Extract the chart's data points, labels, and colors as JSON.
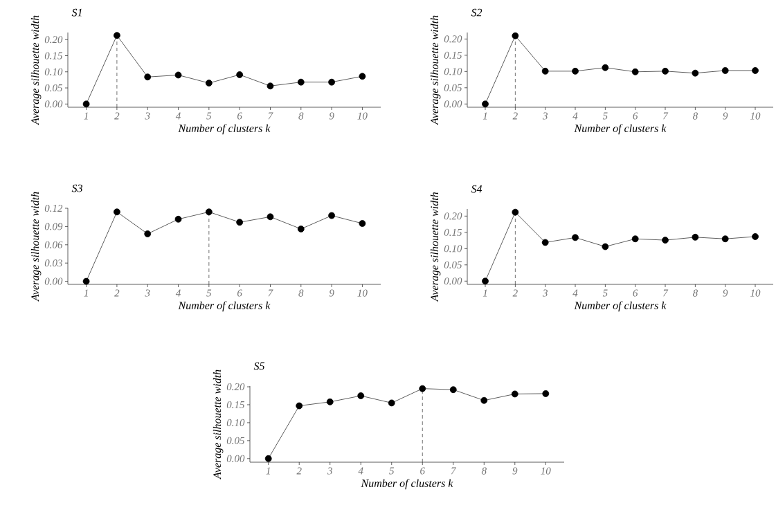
{
  "chart_data": [
    {
      "type": "line",
      "title": "S1",
      "xlabel": "Number of clusters k",
      "ylabel": "Average silhouette width",
      "marker": "circle",
      "x": [
        1,
        2,
        3,
        4,
        5,
        6,
        7,
        8,
        9,
        10
      ],
      "series": [
        {
          "color": "#000000",
          "values": [
            0,
            0.213,
            0.084,
            0.09,
            0.065,
            0.091,
            0.056,
            0.068,
            0.068,
            0.086
          ]
        }
      ],
      "xlim": [
        0.4,
        10.6
      ],
      "xticks": [
        1,
        2,
        3,
        4,
        5,
        6,
        7,
        8,
        9,
        10
      ],
      "ylim": [
        -0.01,
        0.222
      ],
      "yticks": [
        {
          "value": 0,
          "label": "0.00"
        },
        {
          "value": 0.05,
          "label": "0.05"
        },
        {
          "value": 0.1,
          "label": "0.10"
        },
        {
          "value": 0.15,
          "label": "0.15"
        },
        {
          "value": 0.2,
          "label": "0.20"
        }
      ],
      "ref_lines": [
        {
          "axis": "x",
          "value": 2,
          "line_style": "dashed"
        }
      ]
    },
    {
      "type": "line",
      "title": "S2",
      "xlabel": "Number of clusters k",
      "ylabel": "Average silhouette width",
      "marker": "circle",
      "x": [
        1,
        2,
        3,
        4,
        5,
        6,
        7,
        8,
        9,
        10
      ],
      "series": [
        {
          "color": "#000000",
          "values": [
            0,
            0.21,
            0.101,
            0.101,
            0.112,
            0.099,
            0.101,
            0.095,
            0.103,
            0.103
          ]
        }
      ],
      "xlim": [
        0.4,
        10.6
      ],
      "xticks": [
        1,
        2,
        3,
        4,
        5,
        6,
        7,
        8,
        9,
        10
      ],
      "ylim": [
        -0.01,
        0.22
      ],
      "yticks": [
        {
          "value": 0,
          "label": "0.00"
        },
        {
          "value": 0.05,
          "label": "0.05"
        },
        {
          "value": 0.1,
          "label": "0.10"
        },
        {
          "value": 0.15,
          "label": "0.15"
        },
        {
          "value": 0.2,
          "label": "0.20"
        }
      ],
      "ref_lines": [
        {
          "axis": "x",
          "value": 2,
          "line_style": "dashed"
        }
      ]
    },
    {
      "type": "line",
      "title": "S3",
      "xlabel": "Number of clusters k",
      "ylabel": "Average silhouette width",
      "marker": "circle",
      "x": [
        1,
        2,
        3,
        4,
        5,
        6,
        7,
        8,
        9,
        10
      ],
      "series": [
        {
          "color": "#000000",
          "values": [
            0,
            0.114,
            0.078,
            0.102,
            0.114,
            0.097,
            0.106,
            0.086,
            0.108,
            0.095
          ]
        }
      ],
      "xlim": [
        0.4,
        10.6
      ],
      "xticks": [
        1,
        2,
        3,
        4,
        5,
        6,
        7,
        8,
        9,
        10
      ],
      "ylim": [
        -0.005,
        0.12
      ],
      "yticks": [
        {
          "value": 0,
          "label": "0.00"
        },
        {
          "value": 0.03,
          "label": "0.03"
        },
        {
          "value": 0.06,
          "label": "0.06"
        },
        {
          "value": 0.09,
          "label": "0.09"
        },
        {
          "value": 0.12,
          "label": "0.12"
        }
      ],
      "ref_lines": [
        {
          "axis": "x",
          "value": 5,
          "line_style": "dashed"
        }
      ]
    },
    {
      "type": "line",
      "title": "S4",
      "xlabel": "Number of clusters k",
      "ylabel": "Average silhouette width",
      "marker": "circle",
      "x": [
        1,
        2,
        3,
        4,
        5,
        6,
        7,
        8,
        9,
        10
      ],
      "series": [
        {
          "color": "#000000",
          "values": [
            0,
            0.212,
            0.119,
            0.134,
            0.106,
            0.13,
            0.126,
            0.135,
            0.13,
            0.137
          ]
        }
      ],
      "xlim": [
        0.4,
        10.6
      ],
      "xticks": [
        1,
        2,
        3,
        4,
        5,
        6,
        7,
        8,
        9,
        10
      ],
      "ylim": [
        -0.01,
        0.222
      ],
      "yticks": [
        {
          "value": 0,
          "label": "0.00"
        },
        {
          "value": 0.05,
          "label": "0.05"
        },
        {
          "value": 0.1,
          "label": "0.10"
        },
        {
          "value": 0.15,
          "label": "0.15"
        },
        {
          "value": 0.2,
          "label": "0.20"
        }
      ],
      "ref_lines": [
        {
          "axis": "x",
          "value": 2,
          "line_style": "dashed"
        }
      ]
    },
    {
      "type": "line",
      "title": "S5",
      "xlabel": "Number of clusters k",
      "ylabel": "Average silhouette width",
      "marker": "circle",
      "x": [
        1,
        2,
        3,
        4,
        5,
        6,
        7,
        8,
        9,
        10
      ],
      "series": [
        {
          "color": "#000000",
          "values": [
            0,
            0.147,
            0.158,
            0.175,
            0.155,
            0.195,
            0.192,
            0.162,
            0.18,
            0.181
          ]
        }
      ],
      "xlim": [
        0.4,
        10.6
      ],
      "xticks": [
        1,
        2,
        3,
        4,
        5,
        6,
        7,
        8,
        9,
        10
      ],
      "ylim": [
        -0.01,
        0.202
      ],
      "yticks": [
        {
          "value": 0,
          "label": "0.00"
        },
        {
          "value": 0.05,
          "label": "0.05"
        },
        {
          "value": 0.1,
          "label": "0.10"
        },
        {
          "value": 0.15,
          "label": "0.15"
        },
        {
          "value": 0.2,
          "label": "0.20"
        }
      ],
      "ref_lines": [
        {
          "axis": "x",
          "value": 6,
          "line_style": "dashed"
        }
      ]
    }
  ]
}
